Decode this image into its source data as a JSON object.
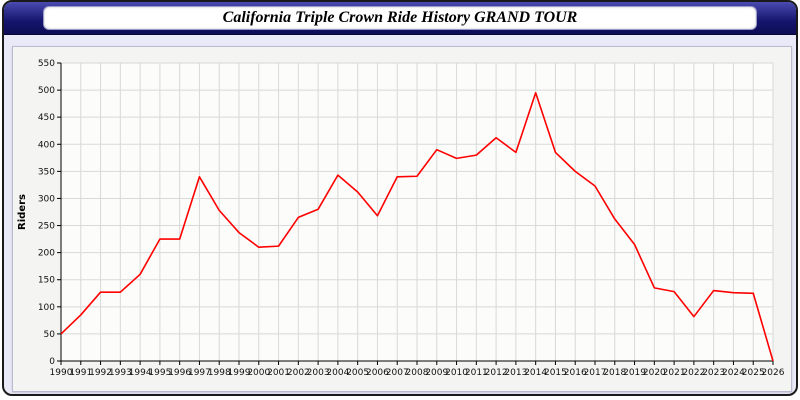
{
  "window": {
    "title": "California Triple Crown Ride History GRAND TOUR"
  },
  "chart_data": {
    "type": "line",
    "title": "California Triple Crown Ride History GRAND TOUR",
    "xlabel": "",
    "ylabel": "Riders",
    "ylim": [
      0,
      550
    ],
    "ytick_step": 50,
    "grid": true,
    "legend": "none",
    "line_color": "#ff0000",
    "x": [
      1990,
      1991,
      1992,
      1993,
      1994,
      1995,
      1996,
      1997,
      1998,
      1999,
      2000,
      2001,
      2002,
      2003,
      2004,
      2005,
      2006,
      2007,
      2008,
      2009,
      2010,
      2011,
      2012,
      2013,
      2014,
      2015,
      2016,
      2017,
      2018,
      2019,
      2020,
      2021,
      2022,
      2023,
      2024,
      2025,
      2026
    ],
    "values": [
      50,
      85,
      127,
      127,
      160,
      225,
      225,
      340,
      278,
      237,
      210,
      212,
      265,
      280,
      343,
      312,
      268,
      340,
      341,
      390,
      374,
      380,
      412,
      385,
      495,
      385,
      350,
      323,
      262,
      215,
      135,
      128,
      82,
      130,
      126,
      125,
      0
    ]
  }
}
